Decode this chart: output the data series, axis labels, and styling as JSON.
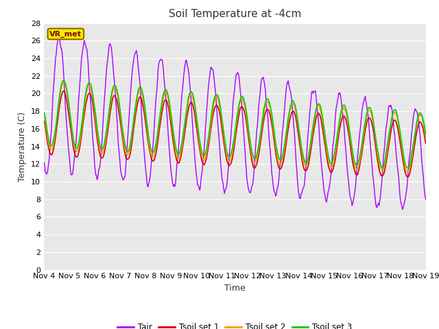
{
  "title": "Soil Temperature at -4cm",
  "xlabel": "Time",
  "ylabel": "Temperature (C)",
  "ylim": [
    0,
    28
  ],
  "yticks": [
    0,
    2,
    4,
    6,
    8,
    10,
    12,
    14,
    16,
    18,
    20,
    22,
    24,
    26,
    28
  ],
  "n_days": 15,
  "start_day": 4,
  "colors": {
    "Tair": "#aa00ff",
    "Tsoil1": "#cc0000",
    "Tsoil2": "#ff9900",
    "Tsoil3": "#00cc00"
  },
  "line_widths": {
    "Tair": 1.0,
    "Tsoil": 1.2
  },
  "legend_labels": [
    "Tair",
    "Tsoil set 1",
    "Tsoil set 2",
    "Tsoil set 3"
  ],
  "vr_met_label": "VR_met",
  "fig_bg_color": "#ffffff",
  "plot_bg_color": "#e8e8e8",
  "grid_color": "#ffffff",
  "title_fontsize": 11,
  "axis_fontsize": 9,
  "tick_fontsize": 8
}
